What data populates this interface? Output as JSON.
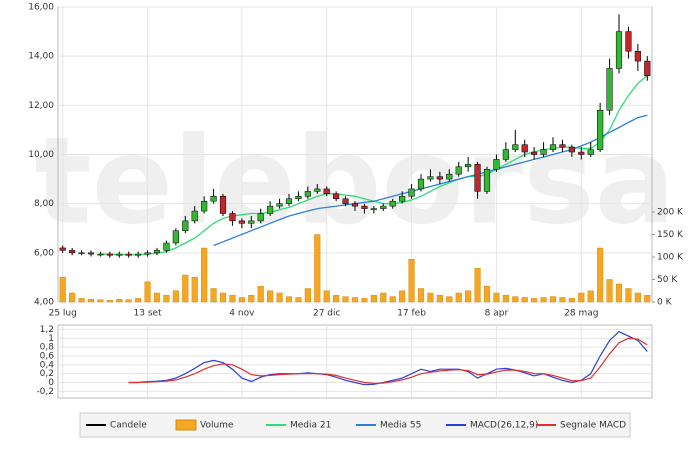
{
  "watermark": "teleborsa",
  "chart_data": [
    {
      "type": "candlestick",
      "categories": [
        "25 lug",
        null,
        null,
        null,
        null,
        null,
        null,
        null,
        null,
        "13 set",
        null,
        null,
        null,
        null,
        null,
        null,
        null,
        null,
        null,
        "4 nov",
        null,
        null,
        null,
        null,
        null,
        null,
        null,
        null,
        "27 dic",
        null,
        null,
        null,
        null,
        null,
        null,
        null,
        null,
        "17 feb",
        null,
        null,
        null,
        null,
        null,
        null,
        null,
        null,
        "8 apr",
        null,
        null,
        null,
        null,
        null,
        null,
        null,
        null,
        "28 mag",
        null,
        null,
        null,
        null,
        null,
        null,
        null
      ],
      "ylim": [
        4,
        16
      ],
      "yticks": [
        {
          "value": 4,
          "label": "4,00"
        },
        {
          "value": 6,
          "label": "6,00"
        },
        {
          "value": 8,
          "label": "8,00"
        },
        {
          "value": 10,
          "label": "10,00"
        },
        {
          "value": 12,
          "label": "12,00"
        },
        {
          "value": 14,
          "label": "14,00"
        },
        {
          "value": 16,
          "label": "16,00"
        }
      ],
      "y2lim": [
        0,
        656000
      ],
      "y2ticks": [
        {
          "value": 0,
          "label": "0 K"
        },
        {
          "value": 50000,
          "label": "50 K"
        },
        {
          "value": 100000,
          "label": "100 K"
        },
        {
          "value": 150000,
          "label": "150 K"
        },
        {
          "value": 200000,
          "label": "200 K"
        }
      ],
      "grid": true,
      "series": [
        {
          "name": "Candele",
          "type": "candlestick",
          "color": "#000000",
          "up_color": "#33b833",
          "down_color": "#c0262c",
          "open": [
            6.2,
            6.1,
            6.0,
            6.0,
            5.95,
            5.95,
            5.9,
            5.95,
            5.9,
            5.95,
            6.0,
            6.1,
            6.4,
            6.9,
            7.3,
            7.7,
            8.1,
            8.3,
            7.6,
            7.3,
            7.2,
            7.3,
            7.6,
            7.9,
            8.0,
            8.2,
            8.3,
            8.5,
            8.6,
            8.4,
            8.2,
            8.0,
            7.9,
            7.8,
            7.8,
            7.9,
            8.1,
            8.3,
            8.6,
            9.0,
            9.1,
            9.0,
            9.2,
            9.5,
            9.6,
            8.5,
            9.4,
            9.8,
            10.2,
            10.4,
            10.1,
            10.0,
            10.2,
            10.4,
            10.3,
            10.1,
            10.0,
            10.2,
            11.8,
            13.5,
            15.0,
            14.2,
            13.8
          ],
          "high": [
            6.3,
            6.2,
            6.1,
            6.1,
            6.05,
            6.05,
            6.05,
            6.05,
            6.05,
            6.1,
            6.2,
            6.5,
            7.0,
            7.5,
            7.9,
            8.3,
            8.6,
            8.4,
            7.7,
            7.4,
            7.5,
            7.8,
            8.1,
            8.2,
            8.4,
            8.5,
            8.7,
            8.8,
            8.7,
            8.5,
            8.3,
            8.1,
            8.0,
            7.9,
            8.0,
            8.2,
            8.5,
            8.8,
            9.2,
            9.4,
            9.3,
            9.4,
            9.7,
            9.9,
            9.7,
            9.5,
            10.0,
            10.5,
            11.0,
            10.6,
            10.3,
            10.5,
            10.7,
            10.6,
            10.4,
            10.3,
            10.5,
            12.1,
            13.9,
            15.7,
            15.2,
            14.5,
            14.0
          ],
          "low": [
            6.0,
            5.9,
            5.9,
            5.85,
            5.85,
            5.8,
            5.8,
            5.8,
            5.8,
            5.85,
            5.9,
            6.0,
            6.3,
            6.8,
            7.2,
            7.6,
            8.0,
            7.5,
            7.1,
            7.0,
            7.0,
            7.2,
            7.5,
            7.8,
            7.9,
            8.1,
            8.2,
            8.4,
            8.3,
            8.1,
            7.9,
            7.7,
            7.6,
            7.6,
            7.7,
            7.8,
            8.0,
            8.2,
            8.5,
            8.9,
            8.8,
            8.9,
            9.1,
            9.3,
            8.2,
            8.4,
            9.3,
            9.7,
            10.1,
            9.9,
            9.8,
            9.9,
            10.1,
            10.1,
            9.9,
            9.8,
            9.9,
            10.1,
            11.6,
            13.3,
            13.9,
            13.4,
            13.0
          ],
          "close": [
            6.1,
            6.0,
            6.0,
            5.95,
            5.95,
            5.9,
            5.95,
            5.9,
            5.95,
            6.0,
            6.1,
            6.4,
            6.9,
            7.3,
            7.7,
            8.1,
            8.3,
            7.6,
            7.3,
            7.2,
            7.3,
            7.6,
            7.9,
            8.0,
            8.2,
            8.3,
            8.5,
            8.6,
            8.4,
            8.2,
            8.0,
            7.9,
            7.8,
            7.8,
            7.9,
            8.1,
            8.3,
            8.6,
            9.0,
            9.1,
            9.0,
            9.2,
            9.5,
            9.6,
            8.5,
            9.4,
            9.8,
            10.2,
            10.4,
            10.1,
            10.0,
            10.2,
            10.4,
            10.3,
            10.1,
            10.0,
            10.2,
            11.8,
            13.5,
            15.0,
            14.2,
            13.8,
            13.2
          ]
        },
        {
          "name": "Volume",
          "type": "bar",
          "axis": "y2",
          "color": "#f5a623",
          "values": [
            55000,
            20000,
            8000,
            6000,
            5000,
            4000,
            6000,
            5000,
            8000,
            45000,
            20000,
            15000,
            25000,
            60000,
            55000,
            120000,
            30000,
            20000,
            15000,
            10000,
            15000,
            35000,
            25000,
            20000,
            12000,
            10000,
            30000,
            150000,
            25000,
            15000,
            12000,
            10000,
            8000,
            15000,
            20000,
            12000,
            25000,
            95000,
            30000,
            20000,
            15000,
            12000,
            20000,
            25000,
            75000,
            35000,
            20000,
            15000,
            12000,
            10000,
            8000,
            10000,
            12000,
            10000,
            8000,
            20000,
            25000,
            120000,
            50000,
            40000,
            30000,
            20000,
            15000
          ]
        },
        {
          "name": "Media 21",
          "type": "line",
          "color": "#2edc7a",
          "values": [
            null,
            null,
            null,
            null,
            5.95,
            5.95,
            5.93,
            5.92,
            5.93,
            5.95,
            5.98,
            6.05,
            6.2,
            6.4,
            6.6,
            6.9,
            7.2,
            7.4,
            7.5,
            7.55,
            7.6,
            7.6,
            7.65,
            7.75,
            7.85,
            8.0,
            8.15,
            8.3,
            8.4,
            8.4,
            8.35,
            8.3,
            8.2,
            8.1,
            8.0,
            8.0,
            8.05,
            8.15,
            8.3,
            8.5,
            8.7,
            8.85,
            9.0,
            9.1,
            9.1,
            9.2,
            9.4,
            9.6,
            9.8,
            10.0,
            10.1,
            10.2,
            10.25,
            10.3,
            10.3,
            10.25,
            10.25,
            10.5,
            11.0,
            11.8,
            12.4,
            12.9,
            13.2
          ]
        },
        {
          "name": "Media 55",
          "type": "line",
          "color": "#2f7fd8",
          "values": [
            null,
            null,
            null,
            null,
            null,
            null,
            null,
            null,
            null,
            null,
            null,
            null,
            null,
            null,
            null,
            null,
            6.3,
            6.45,
            6.6,
            6.75,
            6.9,
            7.05,
            7.2,
            7.35,
            7.5,
            7.6,
            7.7,
            7.8,
            7.85,
            7.9,
            7.95,
            8.0,
            8.05,
            8.1,
            8.2,
            8.3,
            8.4,
            8.5,
            8.6,
            8.7,
            8.8,
            8.9,
            9.0,
            9.1,
            9.2,
            9.3,
            9.4,
            9.5,
            9.6,
            9.7,
            9.8,
            9.9,
            10.0,
            10.1,
            10.2,
            10.35,
            10.5,
            10.7,
            10.9,
            11.1,
            11.3,
            11.5,
            11.6
          ]
        }
      ]
    },
    {
      "type": "line",
      "ylim": [
        -0.35,
        1.3
      ],
      "yticks": [
        {
          "value": -0.2,
          "label": "-0,2"
        },
        0,
        {
          "value": 0.2,
          "label": "0,2"
        },
        {
          "value": 0.4,
          "label": "0,4"
        },
        {
          "value": 0.6,
          "label": "0,6"
        },
        {
          "value": 0.8,
          "label": "0,8"
        },
        1,
        {
          "value": 1.2,
          "label": "1,2"
        }
      ],
      "grid": true,
      "series": [
        {
          "name": "MACD(26,12,9)",
          "color": "#2a3fd6",
          "values": [
            null,
            null,
            null,
            null,
            null,
            null,
            null,
            0.0,
            0.0,
            0.02,
            0.03,
            0.05,
            0.1,
            0.2,
            0.32,
            0.45,
            0.5,
            0.45,
            0.3,
            0.1,
            0.02,
            0.12,
            0.18,
            0.2,
            0.2,
            0.2,
            0.22,
            0.2,
            0.18,
            0.12,
            0.05,
            0.0,
            -0.05,
            -0.04,
            0.0,
            0.05,
            0.1,
            0.2,
            0.3,
            0.25,
            0.3,
            0.3,
            0.3,
            0.25,
            0.1,
            0.2,
            0.3,
            0.32,
            0.28,
            0.22,
            0.15,
            0.2,
            0.12,
            0.05,
            0.0,
            0.05,
            0.2,
            0.6,
            0.95,
            1.15,
            1.05,
            0.95,
            0.7
          ]
        },
        {
          "name": "Segnale MACD",
          "color": "#e03030",
          "values": [
            null,
            null,
            null,
            null,
            null,
            null,
            null,
            0.0,
            0.0,
            0.01,
            0.02,
            0.03,
            0.06,
            0.12,
            0.2,
            0.3,
            0.38,
            0.42,
            0.4,
            0.3,
            0.18,
            0.15,
            0.16,
            0.18,
            0.19,
            0.2,
            0.2,
            0.2,
            0.19,
            0.16,
            0.1,
            0.05,
            0.0,
            -0.02,
            -0.01,
            0.02,
            0.06,
            0.12,
            0.2,
            0.23,
            0.26,
            0.28,
            0.29,
            0.27,
            0.18,
            0.19,
            0.24,
            0.28,
            0.28,
            0.25,
            0.2,
            0.2,
            0.16,
            0.1,
            0.04,
            0.04,
            0.1,
            0.35,
            0.65,
            0.9,
            1.0,
            0.98,
            0.85
          ]
        }
      ]
    }
  ]
}
